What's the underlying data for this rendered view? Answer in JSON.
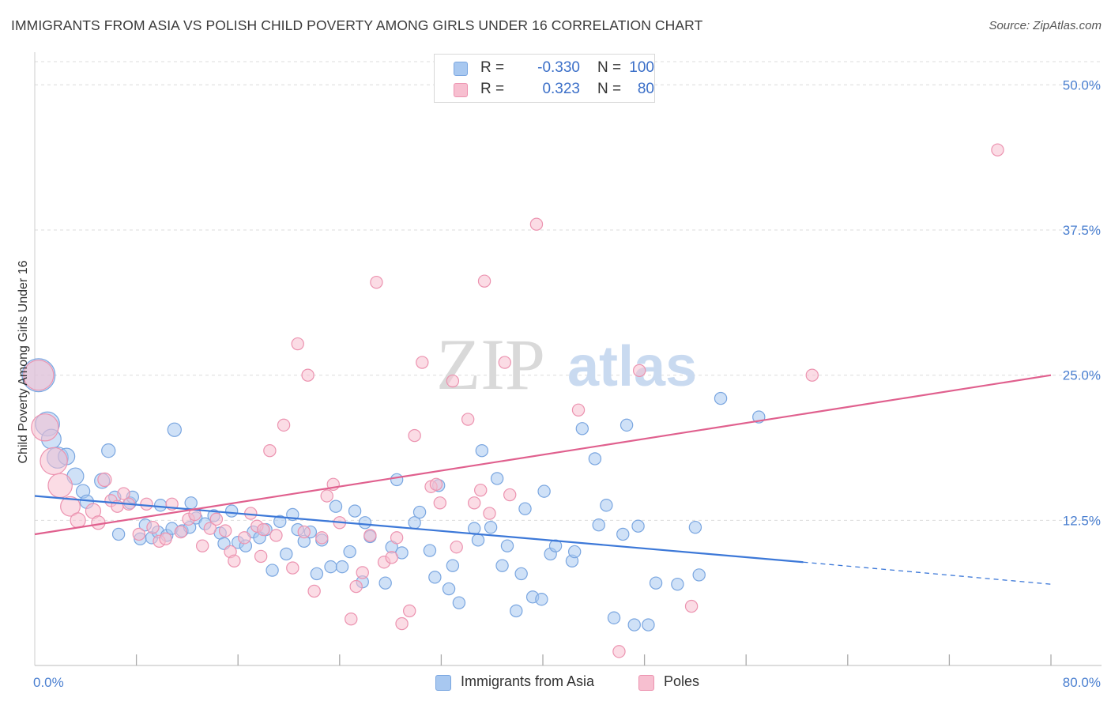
{
  "header": {
    "title": "IMMIGRANTS FROM ASIA VS POLISH CHILD POVERTY AMONG GIRLS UNDER 16 CORRELATION CHART",
    "source": "Source: ZipAtlas.com"
  },
  "watermark": {
    "part1": "ZIP",
    "part2": "atlas"
  },
  "legend": {
    "rows": [
      {
        "r_label": "R =",
        "r_value": "-0.330",
        "n_label": "N =",
        "n_value": "100",
        "color": "#a8c8f0",
        "border": "#7aa6e0"
      },
      {
        "r_label": "R =",
        "r_value": "0.323",
        "n_label": "N =",
        "n_value": "80",
        "color": "#f7bfd0",
        "border": "#ec93b0"
      }
    ]
  },
  "bottom_legend": [
    {
      "label": "Immigrants from Asia",
      "color": "#a8c8f0",
      "border": "#7aa6e0"
    },
    {
      "label": "Poles",
      "color": "#f7bfd0",
      "border": "#ec93b0"
    }
  ],
  "chart_data": {
    "type": "scatter",
    "title": "IMMIGRANTS FROM ASIA VS POLISH CHILD POVERTY AMONG GIRLS UNDER 16 CORRELATION CHART",
    "xlabel": "",
    "ylabel": "Child Poverty Among Girls Under 16",
    "xlim": [
      0,
      80
    ],
    "ylim": [
      0,
      52
    ],
    "x_tick_labels": [
      {
        "value": 0,
        "label": "0.0%"
      },
      {
        "value": 80,
        "label": "80.0%"
      }
    ],
    "y_tick_labels": [
      {
        "value": 12.5,
        "label": "12.5%"
      },
      {
        "value": 25.0,
        "label": "25.0%"
      },
      {
        "value": 37.5,
        "label": "37.5%"
      },
      {
        "value": 50.0,
        "label": "50.0%"
      }
    ],
    "series": [
      {
        "name": "Immigrants from Asia",
        "color": "#7aa6e0",
        "fill": "#a8c8f0",
        "line_color": "#3c78d8",
        "trend": {
          "x0": 0,
          "y0": 14.6,
          "x1": 60.5,
          "y1": 8.9,
          "dash_to_x": 80,
          "dash_to_y": 7.0
        },
        "points": [
          [
            0.3,
            25.0,
            2.2
          ],
          [
            1.0,
            20.8,
            1.6
          ],
          [
            1.3,
            19.5,
            1.3
          ],
          [
            1.8,
            17.9,
            1.4
          ],
          [
            2.5,
            18.0,
            1.1
          ],
          [
            3.2,
            16.3,
            1.1
          ],
          [
            3.8,
            15.0,
            0.9
          ],
          [
            4.1,
            14.1,
            0.9
          ],
          [
            5.3,
            15.9,
            1.0
          ],
          [
            5.8,
            18.5,
            0.9
          ],
          [
            6.3,
            14.5,
            0.8
          ],
          [
            6.6,
            11.3,
            0.8
          ],
          [
            7.5,
            14.0,
            0.8
          ],
          [
            7.7,
            14.5,
            0.8
          ],
          [
            8.3,
            10.9,
            0.8
          ],
          [
            8.7,
            12.1,
            0.8
          ],
          [
            9.2,
            11.0,
            0.8
          ],
          [
            9.7,
            11.5,
            0.8
          ],
          [
            9.9,
            13.8,
            0.8
          ],
          [
            10.4,
            11.2,
            0.8
          ],
          [
            10.8,
            11.8,
            0.8
          ],
          [
            11.0,
            20.3,
            0.9
          ],
          [
            11.6,
            11.6,
            0.8
          ],
          [
            12.2,
            11.9,
            0.8
          ],
          [
            12.3,
            14.0,
            0.8
          ],
          [
            12.7,
            12.7,
            0.8
          ],
          [
            13.4,
            12.2,
            0.8
          ],
          [
            14.1,
            12.9,
            0.8
          ],
          [
            14.6,
            11.4,
            0.8
          ],
          [
            14.9,
            10.5,
            0.8
          ],
          [
            15.5,
            13.3,
            0.8
          ],
          [
            16.0,
            10.6,
            0.8
          ],
          [
            16.6,
            10.3,
            0.8
          ],
          [
            17.2,
            11.5,
            0.8
          ],
          [
            17.7,
            11.0,
            0.8
          ],
          [
            18.2,
            11.7,
            0.8
          ],
          [
            18.7,
            8.2,
            0.8
          ],
          [
            19.3,
            12.4,
            0.8
          ],
          [
            19.8,
            9.6,
            0.8
          ],
          [
            20.3,
            13.0,
            0.8
          ],
          [
            20.7,
            11.7,
            0.8
          ],
          [
            21.2,
            10.7,
            0.8
          ],
          [
            21.7,
            11.5,
            0.8
          ],
          [
            22.2,
            7.9,
            0.8
          ],
          [
            22.6,
            10.8,
            0.8
          ],
          [
            23.3,
            8.5,
            0.8
          ],
          [
            23.7,
            13.7,
            0.8
          ],
          [
            24.2,
            8.5,
            0.8
          ],
          [
            24.8,
            9.8,
            0.8
          ],
          [
            25.2,
            13.3,
            0.8
          ],
          [
            25.8,
            7.2,
            0.8
          ],
          [
            26.0,
            12.3,
            0.8
          ],
          [
            26.4,
            11.1,
            0.8
          ],
          [
            27.6,
            7.1,
            0.8
          ],
          [
            28.1,
            10.2,
            0.8
          ],
          [
            28.5,
            16.0,
            0.8
          ],
          [
            28.9,
            9.7,
            0.8
          ],
          [
            29.9,
            12.3,
            0.8
          ],
          [
            30.3,
            13.2,
            0.8
          ],
          [
            31.1,
            9.9,
            0.8
          ],
          [
            31.5,
            7.6,
            0.8
          ],
          [
            31.8,
            15.5,
            0.8
          ],
          [
            32.6,
            6.6,
            0.8
          ],
          [
            32.9,
            8.6,
            0.8
          ],
          [
            33.4,
            5.4,
            0.8
          ],
          [
            34.6,
            11.8,
            0.8
          ],
          [
            34.9,
            10.8,
            0.8
          ],
          [
            35.2,
            18.5,
            0.8
          ],
          [
            35.9,
            11.9,
            0.8
          ],
          [
            36.4,
            16.1,
            0.8
          ],
          [
            36.8,
            8.6,
            0.8
          ],
          [
            37.2,
            10.3,
            0.8
          ],
          [
            37.9,
            4.7,
            0.8
          ],
          [
            38.3,
            7.9,
            0.8
          ],
          [
            38.6,
            13.5,
            0.8
          ],
          [
            39.2,
            5.9,
            0.8
          ],
          [
            39.9,
            5.7,
            0.8
          ],
          [
            40.1,
            15.0,
            0.8
          ],
          [
            40.6,
            9.6,
            0.8
          ],
          [
            41.0,
            10.3,
            0.8
          ],
          [
            42.3,
            9.0,
            0.8
          ],
          [
            42.5,
            9.8,
            0.8
          ],
          [
            43.1,
            20.4,
            0.8
          ],
          [
            44.1,
            17.8,
            0.8
          ],
          [
            44.4,
            12.1,
            0.8
          ],
          [
            45.0,
            13.8,
            0.8
          ],
          [
            45.6,
            4.1,
            0.8
          ],
          [
            46.3,
            11.3,
            0.8
          ],
          [
            46.6,
            20.7,
            0.8
          ],
          [
            47.2,
            3.5,
            0.8
          ],
          [
            47.5,
            12.0,
            0.8
          ],
          [
            48.3,
            3.5,
            0.8
          ],
          [
            48.9,
            7.1,
            0.8
          ],
          [
            50.6,
            7.0,
            0.8
          ],
          [
            52.0,
            11.9,
            0.8
          ],
          [
            52.3,
            7.8,
            0.8
          ],
          [
            54.0,
            23.0,
            0.8
          ],
          [
            57.0,
            21.4,
            0.8
          ]
        ]
      },
      {
        "name": "Poles",
        "color": "#ec93b0",
        "fill": "#f7bfd0",
        "line_color": "#e0608e",
        "trend": {
          "x0": 0,
          "y0": 11.3,
          "x1": 80,
          "y1": 25.0
        },
        "points": [
          [
            0.3,
            25.0,
            2.0
          ],
          [
            0.8,
            20.5,
            1.8
          ],
          [
            1.5,
            17.6,
            1.8
          ],
          [
            2.0,
            15.5,
            1.6
          ],
          [
            2.8,
            13.7,
            1.3
          ],
          [
            3.4,
            12.5,
            1.0
          ],
          [
            4.6,
            13.3,
            1.0
          ],
          [
            5.0,
            12.3,
            0.9
          ],
          [
            5.5,
            16.0,
            0.9
          ],
          [
            6.0,
            14.2,
            0.8
          ],
          [
            6.5,
            13.7,
            0.8
          ],
          [
            7.0,
            14.8,
            0.8
          ],
          [
            7.4,
            13.9,
            0.8
          ],
          [
            8.2,
            11.3,
            0.8
          ],
          [
            8.8,
            13.9,
            0.8
          ],
          [
            9.3,
            11.9,
            0.8
          ],
          [
            9.8,
            10.7,
            0.8
          ],
          [
            10.3,
            10.9,
            0.8
          ],
          [
            10.8,
            13.9,
            0.8
          ],
          [
            11.5,
            11.5,
            0.8
          ],
          [
            12.1,
            12.6,
            0.8
          ],
          [
            12.6,
            13.0,
            0.8
          ],
          [
            13.2,
            10.3,
            0.8
          ],
          [
            13.8,
            11.8,
            0.8
          ],
          [
            14.3,
            12.6,
            0.8
          ],
          [
            15.0,
            11.6,
            0.8
          ],
          [
            15.4,
            9.8,
            0.8
          ],
          [
            15.7,
            9.0,
            0.8
          ],
          [
            16.5,
            11.0,
            0.8
          ],
          [
            17.0,
            13.1,
            0.8
          ],
          [
            17.5,
            12.0,
            0.8
          ],
          [
            17.8,
            9.4,
            0.8
          ],
          [
            18.0,
            11.7,
            0.8
          ],
          [
            18.5,
            18.5,
            0.8
          ],
          [
            19.0,
            11.2,
            0.8
          ],
          [
            19.6,
            20.7,
            0.8
          ],
          [
            20.3,
            8.4,
            0.8
          ],
          [
            20.7,
            27.7,
            0.8
          ],
          [
            21.2,
            11.5,
            0.8
          ],
          [
            21.5,
            25.0,
            0.8
          ],
          [
            22.0,
            6.4,
            0.8
          ],
          [
            22.6,
            11.0,
            0.8
          ],
          [
            23.0,
            14.6,
            0.8
          ],
          [
            23.5,
            15.6,
            0.8
          ],
          [
            24.0,
            12.3,
            0.8
          ],
          [
            24.9,
            4.0,
            0.8
          ],
          [
            25.3,
            6.8,
            0.8
          ],
          [
            25.8,
            8.0,
            0.8
          ],
          [
            26.4,
            11.2,
            0.8
          ],
          [
            26.9,
            33.0,
            0.8
          ],
          [
            27.5,
            8.9,
            0.8
          ],
          [
            28.1,
            9.3,
            0.8
          ],
          [
            28.5,
            11.0,
            0.8
          ],
          [
            28.9,
            3.6,
            0.8
          ],
          [
            29.5,
            4.7,
            0.8
          ],
          [
            29.9,
            19.8,
            0.8
          ],
          [
            30.5,
            26.1,
            0.8
          ],
          [
            31.2,
            15.4,
            0.8
          ],
          [
            31.6,
            15.6,
            0.8
          ],
          [
            31.9,
            14.0,
            0.8
          ],
          [
            32.9,
            24.5,
            0.8
          ],
          [
            33.2,
            10.2,
            0.8
          ],
          [
            34.1,
            21.2,
            0.8
          ],
          [
            34.6,
            14.0,
            0.8
          ],
          [
            35.1,
            15.1,
            0.8
          ],
          [
            35.4,
            33.1,
            0.8
          ],
          [
            35.8,
            13.1,
            0.8
          ],
          [
            37.0,
            26.1,
            0.8
          ],
          [
            37.4,
            14.7,
            0.8
          ],
          [
            39.5,
            38.0,
            0.8
          ],
          [
            42.8,
            22.0,
            0.8
          ],
          [
            46.0,
            1.2,
            0.8
          ],
          [
            47.6,
            25.4,
            0.8
          ],
          [
            51.7,
            5.1,
            0.8
          ],
          [
            61.2,
            25.0,
            0.8
          ],
          [
            75.8,
            44.4,
            0.8
          ]
        ]
      }
    ],
    "grid": true,
    "legend_position": "top-center"
  }
}
